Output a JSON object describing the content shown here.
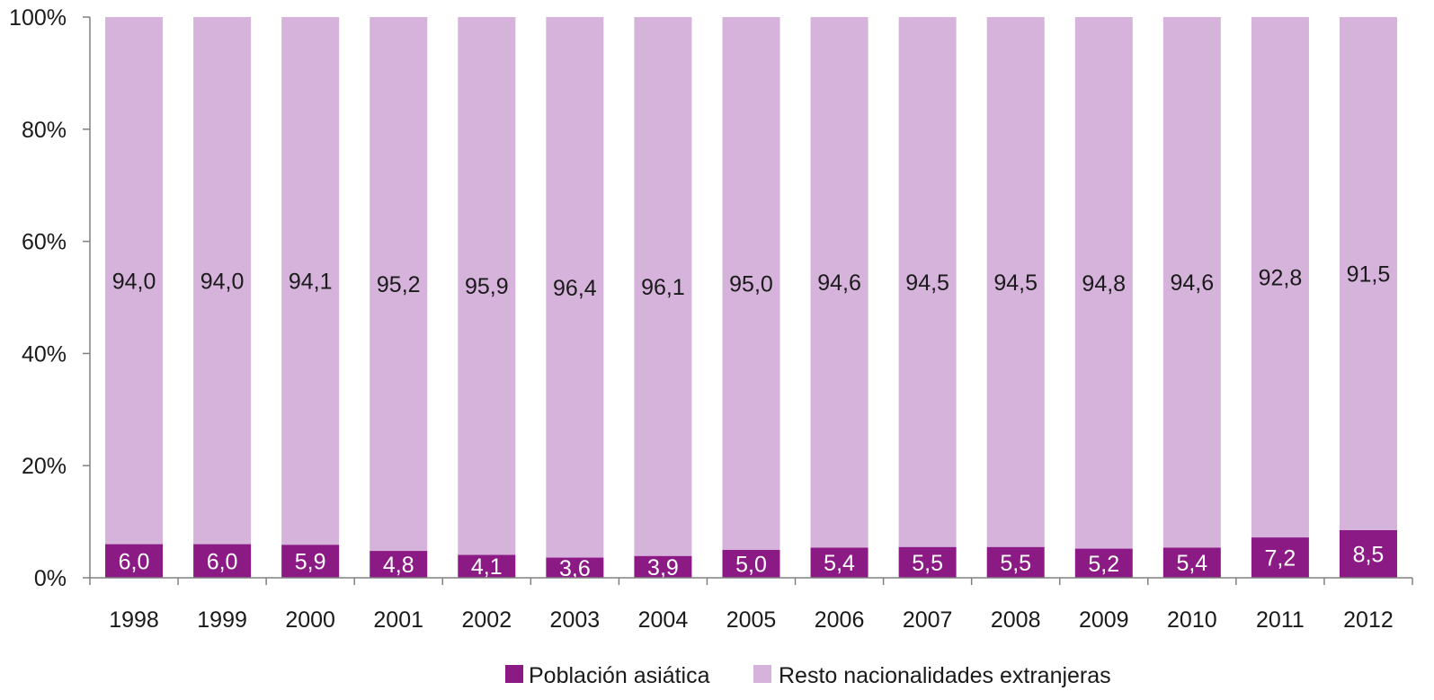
{
  "chart_data": {
    "type": "bar",
    "stacked": true,
    "percent_stacked": true,
    "categories": [
      "1998",
      "1999",
      "2000",
      "2001",
      "2002",
      "2003",
      "2004",
      "2005",
      "2006",
      "2007",
      "2008",
      "2009",
      "2010",
      "2011",
      "2012"
    ],
    "series": [
      {
        "name": "Población asiática",
        "color": "#8b1a85",
        "label_color": "#ffffff",
        "values": [
          6.0,
          6.0,
          5.9,
          4.8,
          4.1,
          3.6,
          3.9,
          5.0,
          5.4,
          5.5,
          5.5,
          5.2,
          5.4,
          7.2,
          8.5
        ],
        "labels": [
          "6,0",
          "6,0",
          "5,9",
          "4,8",
          "4,1",
          "3,6",
          "3,9",
          "5,0",
          "5,4",
          "5,5",
          "5,5",
          "5,2",
          "5,4",
          "7,2",
          "8,5"
        ]
      },
      {
        "name": "Resto nacionalidades extranjeras",
        "color": "#d5b3db",
        "label_color": "#1a1a1a",
        "values": [
          94.0,
          94.0,
          94.1,
          95.2,
          95.9,
          96.4,
          96.1,
          95.0,
          94.6,
          94.5,
          94.5,
          94.8,
          94.6,
          92.8,
          91.5
        ],
        "labels": [
          "94,0",
          "94,0",
          "94,1",
          "95,2",
          "95,9",
          "96,4",
          "96,1",
          "95,0",
          "94,6",
          "94,5",
          "94,5",
          "94,8",
          "94,6",
          "92,8",
          "91,5"
        ]
      }
    ],
    "y_ticks": [
      "0%",
      "20%",
      "40%",
      "60%",
      "80%",
      "100%"
    ],
    "ylim": [
      0,
      100
    ],
    "title": "",
    "xlabel": "",
    "ylabel": "",
    "grid": false,
    "legend_position": "bottom"
  }
}
